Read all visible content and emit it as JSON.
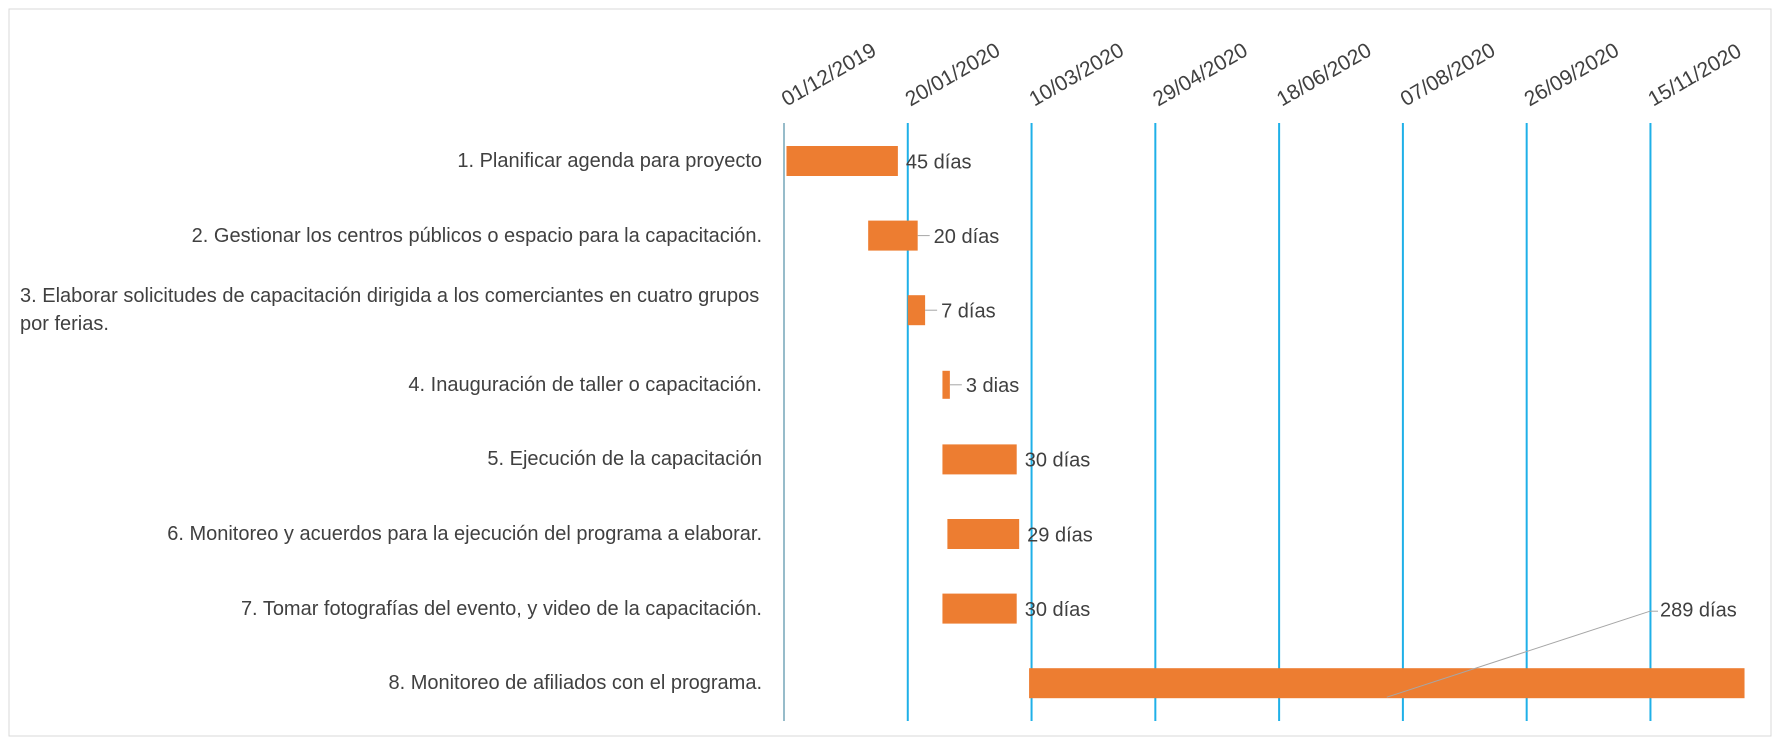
{
  "chart_data": {
    "type": "gantt",
    "categories": [
      "1. Planificar agenda para proyecto",
      "2. Gestionar los centros públicos o espacio para la capacitación.",
      "3. Elaborar solicitudes de capacitación dirigida a los comerciantes en cuatro grupos por ferias.",
      "4. Inauguración de taller o capacitación.",
      "5. Ejecución de la capacitación",
      "6. Monitoreo y acuerdos para la ejecución del programa a elaborar.",
      "7. Tomar fotografías del evento, y video de la capacitación.",
      "8. Monitoreo de afiliados con el programa."
    ],
    "start": [
      "2019-12-02",
      "2020-01-04",
      "2020-01-20",
      "2020-02-03",
      "2020-02-03",
      "2020-02-05",
      "2020-02-03",
      "2020-03-09"
    ],
    "values": [
      45,
      20,
      7,
      3,
      30,
      29,
      30,
      289
    ],
    "value_labels": [
      "45 días",
      "20 días",
      "7 días",
      "3 dias",
      "30 días",
      "29 días",
      "30 días",
      "289 días"
    ],
    "color": "#ed7d31",
    "grid_color": "#1fb0e8",
    "xlim": [
      "2019-12-01",
      "2020-12-24"
    ],
    "xticks": [
      {
        "value": "2019-12-01",
        "label": "01/12/2019"
      },
      {
        "value": "2020-01-20",
        "label": "20/01/2020"
      },
      {
        "value": "2020-03-10",
        "label": "10/03/2020"
      },
      {
        "value": "2020-04-29",
        "label": "29/04/2020"
      },
      {
        "value": "2020-06-18",
        "label": "18/06/2020"
      },
      {
        "value": "2020-08-07",
        "label": "07/08/2020"
      },
      {
        "value": "2020-09-26",
        "label": "26/09/2020"
      },
      {
        "value": "2020-11-15",
        "label": "15/11/2020"
      }
    ],
    "grid": true
  }
}
